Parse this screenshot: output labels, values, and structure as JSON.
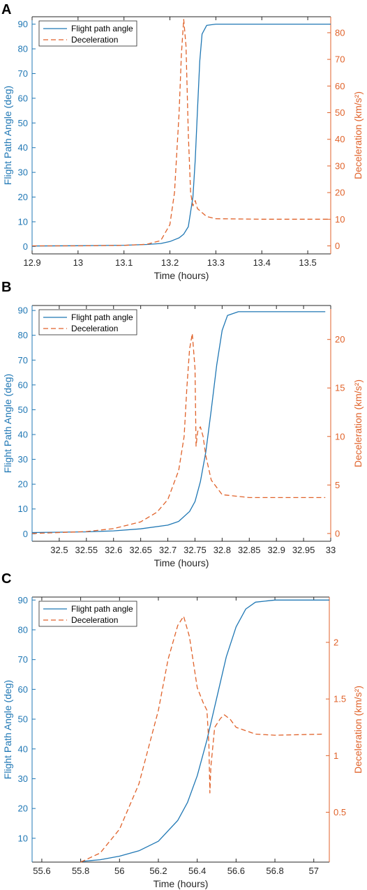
{
  "colors": {
    "left": "#1f77b4",
    "right": "#e0622a",
    "axis": "#262626"
  },
  "chart_data": [
    {
      "panel": "A",
      "type": "line",
      "xlabel": "Time (hours)",
      "ylabel_left": "Flight Path Angle (deg)",
      "ylabel_right": "Deceleration (km/s²)",
      "legend": [
        "Flight path angle",
        "Deceleration"
      ],
      "legend_placement": "top-left",
      "xlim": [
        12.9,
        13.55
      ],
      "ylim_left": [
        -3,
        93
      ],
      "ylim_right": [
        -3,
        86
      ],
      "xticks": [
        12.9,
        13,
        13.1,
        13.2,
        13.3,
        13.4,
        13.5
      ],
      "xtick_labels": [
        "12.9",
        "13",
        "13.1",
        "13.2",
        "13.3",
        "13.4",
        "13.5"
      ],
      "yticks_left": [
        0,
        10,
        20,
        30,
        40,
        50,
        60,
        70,
        80,
        90
      ],
      "yticks_right": [
        0,
        10,
        20,
        30,
        40,
        50,
        60,
        70,
        80
      ],
      "ytick_labels_right": [
        "0",
        "10",
        "20",
        "30",
        "40",
        "50",
        "60",
        "70",
        "80"
      ],
      "series": [
        {
          "name": "Flight path angle",
          "axis": "left",
          "style": "solid",
          "x": [
            12.9,
            13.0,
            13.1,
            13.15,
            13.18,
            13.2,
            13.22,
            13.23,
            13.24,
            13.25,
            13.255,
            13.26,
            13.265,
            13.27,
            13.28,
            13.3,
            13.4,
            13.55
          ],
          "y": [
            0.2,
            0.3,
            0.5,
            0.8,
            1.2,
            2,
            3.5,
            5,
            8,
            20,
            35,
            55,
            75,
            86,
            89.5,
            90,
            90,
            90
          ]
        },
        {
          "name": "Deceleration",
          "axis": "right",
          "style": "dashed",
          "x": [
            12.9,
            13.0,
            13.1,
            13.15,
            13.18,
            13.2,
            13.21,
            13.22,
            13.225,
            13.23,
            13.235,
            13.24,
            13.245,
            13.25,
            13.255,
            13.26,
            13.28,
            13.3,
            13.4,
            13.55
          ],
          "y": [
            0,
            0,
            0.2,
            0.6,
            2,
            8,
            20,
            50,
            72,
            85,
            75,
            42,
            20,
            15,
            17,
            14,
            11,
            10.2,
            10,
            10
          ]
        }
      ]
    },
    {
      "panel": "B",
      "type": "line",
      "xlabel": "Time (hours)",
      "ylabel_left": "Flight Path Angle (deg)",
      "ylabel_right": "Deceleration (km/s²)",
      "legend": [
        "Flight path angle",
        "Deceleration"
      ],
      "legend_placement": "top-left",
      "xlim": [
        32.45,
        33.0
      ],
      "ylim_left": [
        -3,
        92
      ],
      "ylim_right": [
        -0.8,
        23.5
      ],
      "xticks": [
        32.5,
        32.55,
        32.6,
        32.65,
        32.7,
        32.75,
        32.8,
        32.85,
        32.9,
        32.95,
        33
      ],
      "xtick_labels": [
        "32.5",
        "32.55",
        "32.6",
        "32.65",
        "32.7",
        "32.75",
        "32.8",
        "32.85",
        "32.9",
        "32.95",
        "33"
      ],
      "yticks_left": [
        0,
        10,
        20,
        30,
        40,
        50,
        60,
        70,
        80,
        90
      ],
      "yticks_right": [
        0,
        5,
        10,
        15,
        20
      ],
      "ytick_labels_right": [
        "0",
        "5",
        "10",
        "15",
        "20"
      ],
      "series": [
        {
          "name": "Flight path angle",
          "axis": "left",
          "style": "solid",
          "x": [
            32.45,
            32.55,
            32.6,
            32.65,
            32.7,
            32.72,
            32.74,
            32.75,
            32.76,
            32.77,
            32.78,
            32.79,
            32.8,
            32.81,
            32.83,
            32.9,
            32.99
          ],
          "y": [
            0.5,
            0.8,
            1.2,
            2,
            3.5,
            5,
            9,
            13,
            21,
            33,
            50,
            68,
            82,
            88,
            89.5,
            89.5,
            89.5
          ]
        },
        {
          "name": "Deceleration",
          "axis": "right",
          "style": "dashed",
          "x": [
            32.45,
            32.55,
            32.6,
            32.65,
            32.68,
            32.7,
            32.72,
            32.73,
            32.735,
            32.74,
            32.745,
            32.75,
            32.752,
            32.755,
            32.76,
            32.765,
            32.77,
            32.78,
            32.8,
            32.85,
            32.99
          ],
          "y": [
            0,
            0.2,
            0.5,
            1.2,
            2.2,
            3.5,
            6.5,
            10,
            15,
            19,
            20.6,
            17,
            9,
            10.5,
            11,
            10,
            8,
            5.5,
            4,
            3.7,
            3.7
          ]
        }
      ]
    },
    {
      "panel": "C",
      "type": "line",
      "xlabel": "Time (hours)",
      "ylabel_left": "Flight Path Angle (deg)",
      "ylabel_right": "Deceleration (km/s²)",
      "legend": [
        "Flight path angle",
        "Deceleration"
      ],
      "legend_placement": "top-left",
      "xlim": [
        55.55,
        57.08
      ],
      "ylim_left": [
        2,
        91
      ],
      "ylim_right": [
        0.06,
        2.4
      ],
      "xticks": [
        55.6,
        55.8,
        56,
        56.2,
        56.4,
        56.6,
        56.8,
        57
      ],
      "xtick_labels": [
        "55.6",
        "55.8",
        "56",
        "56.2",
        "56.4",
        "56.6",
        "56.8",
        "57"
      ],
      "yticks_left": [
        10,
        20,
        30,
        40,
        50,
        60,
        70,
        80,
        90
      ],
      "yticks_right": [
        0.5,
        1,
        1.5,
        2
      ],
      "ytick_labels_right": [
        "0.5",
        "1",
        "1.5",
        "2"
      ],
      "series": [
        {
          "name": "Flight path angle",
          "axis": "left",
          "style": "solid",
          "x": [
            55.8,
            55.9,
            56.0,
            56.1,
            56.2,
            56.3,
            56.35,
            56.4,
            56.45,
            56.5,
            56.55,
            56.6,
            56.65,
            56.7,
            56.8,
            56.9,
            57.08
          ],
          "y": [
            2.2,
            2.8,
            4,
            5.8,
            9,
            16,
            22,
            31,
            43,
            57,
            71,
            81,
            87,
            89.3,
            90,
            90,
            90
          ]
        },
        {
          "name": "Deceleration",
          "axis": "right",
          "style": "dashed",
          "x": [
            55.8,
            55.9,
            56.0,
            56.1,
            56.2,
            56.25,
            56.3,
            56.33,
            56.36,
            56.4,
            56.43,
            56.45,
            56.46,
            56.465,
            56.47,
            56.49,
            56.52,
            56.54,
            56.57,
            56.6,
            56.7,
            56.8,
            57.05
          ],
          "y": [
            0.06,
            0.14,
            0.35,
            0.75,
            1.4,
            1.85,
            2.15,
            2.23,
            2.05,
            1.6,
            1.47,
            1.4,
            1.1,
            0.67,
            0.9,
            1.25,
            1.33,
            1.36,
            1.32,
            1.25,
            1.19,
            1.18,
            1.19
          ]
        }
      ]
    }
  ]
}
